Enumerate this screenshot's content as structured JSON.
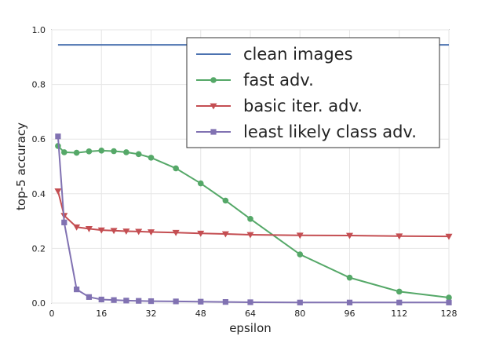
{
  "chart_data": {
    "type": "line",
    "title": "",
    "xlabel": "epsilon",
    "ylabel": "top-5 accuracy",
    "xlim": [
      0,
      128
    ],
    "ylim": [
      0.0,
      1.0
    ],
    "xticks": [
      0,
      16,
      32,
      48,
      64,
      80,
      96,
      112,
      128
    ],
    "xtick_labels": [
      "0",
      "16",
      "32",
      "48",
      "64",
      "80",
      "96",
      "112",
      "128"
    ],
    "yticks": [
      0.0,
      0.2,
      0.4,
      0.6,
      0.8,
      1.0
    ],
    "ytick_labels": [
      "0.0",
      "0.2",
      "0.4",
      "0.6",
      "0.8",
      "1.0"
    ],
    "grid": true,
    "legend_position": "top-right",
    "series": [
      {
        "name": "clean images",
        "color": "#4c72b0",
        "marker": "none",
        "x": [
          2,
          128
        ],
        "y": [
          0.945,
          0.945
        ]
      },
      {
        "name": "fast adv.",
        "color": "#55a868",
        "marker": "circle",
        "x": [
          2,
          4,
          8,
          12,
          16,
          20,
          24,
          28,
          32,
          40,
          48,
          56,
          64,
          80,
          96,
          112,
          128
        ],
        "y": [
          0.575,
          0.552,
          0.55,
          0.555,
          0.558,
          0.556,
          0.552,
          0.545,
          0.532,
          0.493,
          0.438,
          0.375,
          0.308,
          0.178,
          0.093,
          0.042,
          0.02
        ]
      },
      {
        "name": "basic iter. adv.",
        "color": "#c44e52",
        "marker": "triangle-down",
        "x": [
          2,
          4,
          8,
          12,
          16,
          20,
          24,
          28,
          32,
          40,
          48,
          56,
          64,
          80,
          96,
          112,
          128
        ],
        "y": [
          0.41,
          0.32,
          0.278,
          0.272,
          0.267,
          0.265,
          0.263,
          0.262,
          0.26,
          0.258,
          0.255,
          0.253,
          0.25,
          0.248,
          0.247,
          0.245,
          0.244
        ]
      },
      {
        "name": "least likely class adv.",
        "color": "#8172b2",
        "marker": "square",
        "x": [
          2,
          4,
          8,
          12,
          16,
          20,
          24,
          28,
          32,
          40,
          48,
          56,
          64,
          80,
          96,
          112,
          128
        ],
        "y": [
          0.61,
          0.295,
          0.05,
          0.022,
          0.013,
          0.011,
          0.009,
          0.008,
          0.007,
          0.006,
          0.005,
          0.004,
          0.003,
          0.002,
          0.002,
          0.002,
          0.002
        ]
      }
    ]
  }
}
